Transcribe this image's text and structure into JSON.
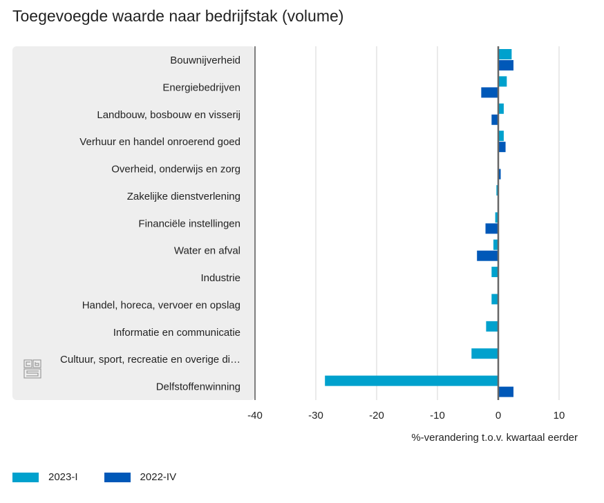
{
  "chart_data": {
    "type": "bar",
    "orientation": "horizontal",
    "title": "Toegevoegde waarde naar bedrijfstak (volume)",
    "xlabel": "%-verandering t.o.v. kwartaal eerder",
    "ylabel": "",
    "xlim": [
      -40,
      10
    ],
    "xticks": [
      -40,
      -30,
      -20,
      -10,
      0,
      10
    ],
    "grid": true,
    "legend_position": "bottom-left",
    "categories": [
      "Bouwnijverheid",
      "Energiebedrijven",
      "Landbouw, bosbouw en visserij",
      "Verhuur en handel onroerend goed",
      "Overheid, onderwijs en zorg",
      "Zakelijke dienstverlening",
      "Financiële instellingen",
      "Water en afval",
      "Industrie",
      "Handel, horeca, vervoer en opslag",
      "Informatie en communicatie",
      "Cultuur, sport, recreatie en overige di…",
      "Delfstoffenwinning"
    ],
    "series": [
      {
        "name": "2023-I",
        "color": "#00a1cd",
        "values": [
          2.2,
          1.4,
          0.9,
          0.9,
          0.0,
          -0.3,
          -0.5,
          -0.8,
          -1.1,
          -1.1,
          -2.0,
          -4.4,
          -28.5
        ]
      },
      {
        "name": "2022-IV",
        "color": "#0058b8",
        "values": [
          2.5,
          -2.8,
          -1.1,
          1.2,
          0.4,
          0.0,
          -2.1,
          -3.5,
          0.0,
          0.0,
          0.0,
          0.0,
          2.5
        ]
      }
    ]
  },
  "logo": {
    "text": "cbs"
  }
}
